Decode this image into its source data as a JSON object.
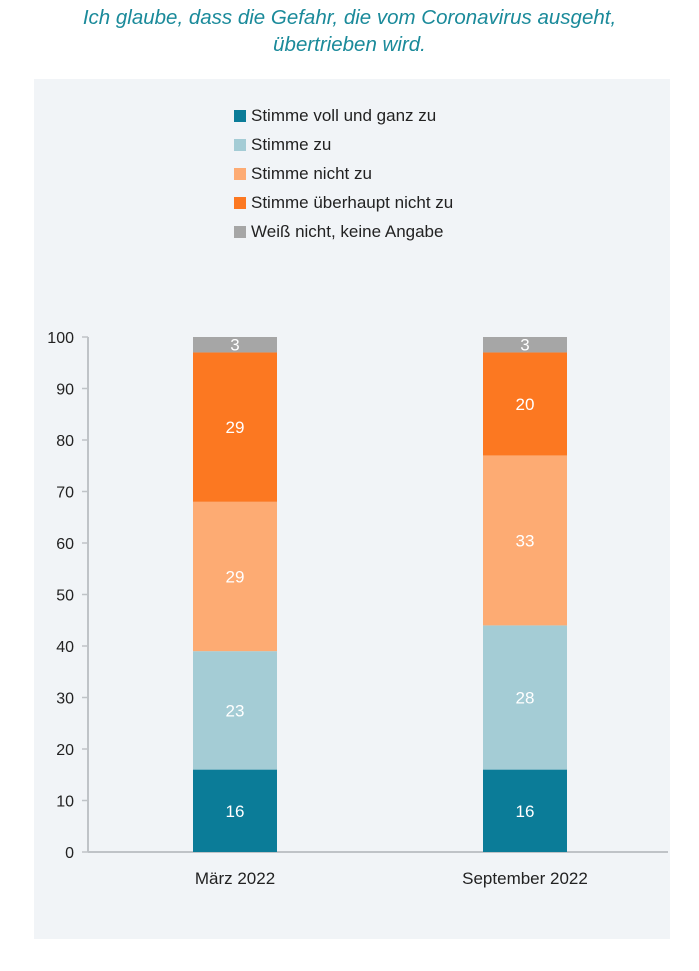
{
  "title_lines": [
    "Ich glaube, dass die Gefahr, die vom Coronavirus ausgeht,",
    "übertrieben wird."
  ],
  "colors": {
    "title": "#1a8a9a",
    "panel_bg": "#f1f4f7",
    "axis": "#bfc3c7"
  },
  "chart_data": {
    "type": "bar",
    "stacked": true,
    "categories": [
      "März 2022",
      "September 2022"
    ],
    "series": [
      {
        "name": "Stimme voll und ganz zu",
        "color": "#0b7c98",
        "values": [
          16,
          16
        ]
      },
      {
        "name": "Stimme zu",
        "color": "#a4ccd5",
        "values": [
          23,
          28
        ]
      },
      {
        "name": "Stimme nicht zu",
        "color": "#fdab73",
        "values": [
          29,
          33
        ]
      },
      {
        "name": "Stimme überhaupt nicht zu",
        "color": "#fc7821",
        "values": [
          29,
          20
        ]
      },
      {
        "name": "Weiß nicht, keine Angabe",
        "color": "#a6a6a6",
        "values": [
          3,
          3
        ]
      }
    ],
    "ylim": [
      0,
      100
    ],
    "yticks": [
      0,
      10,
      20,
      30,
      40,
      50,
      60,
      70,
      80,
      90,
      100
    ],
    "legend_position": "top",
    "grid": false
  }
}
